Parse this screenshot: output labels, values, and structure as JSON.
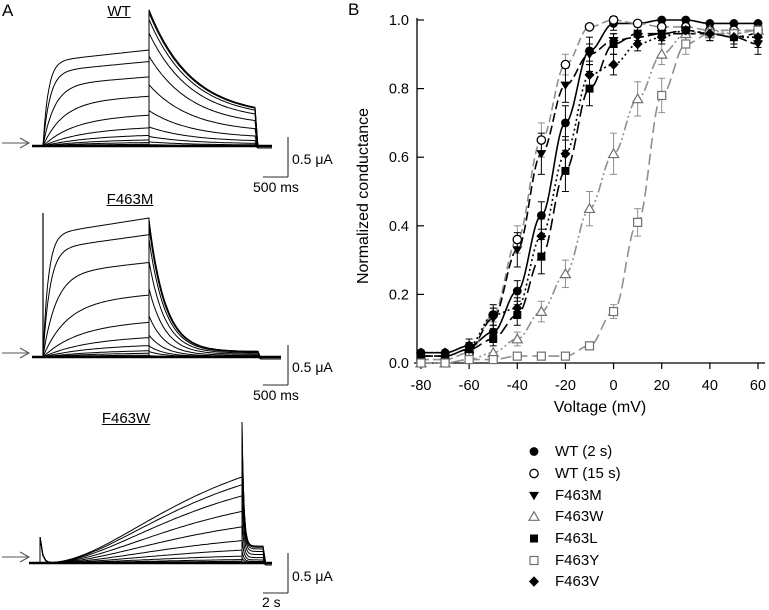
{
  "figure": {
    "panelA": {
      "label": "A",
      "plots": [
        {
          "title": "WT",
          "type": "wt",
          "scale_v": "0.5 μA",
          "scale_t": "500 ms",
          "trace_activation_levels": [
            0,
            0.005,
            0.01,
            0.02,
            0.04,
            0.07,
            0.12,
            0.2,
            0.33,
            0.52,
            0.72,
            0.88,
            1.0
          ],
          "trace_tail_levels": [
            0,
            0.01,
            0.03,
            0.07,
            0.14,
            0.26,
            0.45,
            0.66,
            0.83,
            0.93,
            0.98,
            1.0,
            1.0
          ]
        },
        {
          "title": "F463M",
          "type": "m",
          "scale_v": "0.5 μA",
          "scale_t": "500 ms",
          "trace_activation_levels": [
            0,
            0.005,
            0.015,
            0.03,
            0.05,
            0.09,
            0.15,
            0.26,
            0.45,
            0.68,
            0.88,
            1.0
          ],
          "trace_tail_levels": [
            0,
            0.01,
            0.04,
            0.08,
            0.16,
            0.3,
            0.5,
            0.7,
            0.86,
            0.95,
            1.0,
            1.0
          ]
        },
        {
          "title": "F463W",
          "type": "w",
          "scale_v": "0.5 μA",
          "scale_t": "2 s",
          "trace_activation_levels": [
            0,
            0.01,
            0.02,
            0.04,
            0.08,
            0.15,
            0.26,
            0.42,
            0.6,
            0.78,
            0.91,
            1.0
          ],
          "trace_tail_levels": [
            0,
            0.01,
            0.04,
            0.09,
            0.18,
            0.32,
            0.5,
            0.68,
            0.83,
            0.93,
            0.98,
            1.0
          ]
        }
      ]
    },
    "panelB": {
      "label": "B"
    }
  },
  "chart_data": {
    "type": "scatter",
    "title": "",
    "xlabel": "Voltage (mV)",
    "ylabel": "Normalized conductance",
    "x": [
      -80,
      -70,
      -60,
      -50,
      -40,
      -30,
      -20,
      -10,
      0,
      10,
      20,
      30,
      40,
      50,
      60
    ],
    "xlim": [
      -80,
      60
    ],
    "ylim": [
      0.0,
      1.0
    ],
    "xticks": [
      -80,
      -60,
      -40,
      -20,
      0,
      20,
      40,
      60
    ],
    "yticks": [
      0.0,
      0.2,
      0.4,
      0.6,
      0.8,
      1.0
    ],
    "grid": false,
    "legend_position": "below-right",
    "colors": {
      "black": "#000000",
      "gray": "#8f8f8f"
    },
    "series": [
      {
        "name": "WT (2 s)",
        "marker": "circle",
        "color": "#000000",
        "marker_color": "#000000",
        "dash": "",
        "values": [
          0.03,
          0.03,
          0.05,
          0.09,
          0.21,
          0.43,
          0.7,
          0.91,
          0.99,
          0.99,
          1.0,
          1.0,
          0.99,
          0.99,
          0.99
        ],
        "err": [
          0.01,
          0.01,
          0.01,
          0.02,
          0.03,
          0.04,
          0.05,
          0.04,
          0.02,
          0.01,
          0.01,
          0.01,
          0.01,
          0.01,
          0.01
        ]
      },
      {
        "name": "WT (15 s)",
        "marker": "circle-open",
        "color": "#8f8f8f",
        "marker_color": "#000000",
        "dash": "8,4",
        "values": [
          0.01,
          0.01,
          0.03,
          0.14,
          0.36,
          0.65,
          0.87,
          0.98,
          1.0,
          0.99,
          0.98,
          0.98,
          0.97,
          0.97,
          0.97
        ],
        "err": [
          0.005,
          0.005,
          0.01,
          0.02,
          0.04,
          0.05,
          0.03,
          0.01,
          0.005,
          0.01,
          0.01,
          0.01,
          0.01,
          0.01,
          0.02
        ]
      },
      {
        "name": "F463M",
        "marker": "triangle-down",
        "color": "#000000",
        "marker_color": "#000000",
        "dash": "9,4",
        "values": [
          0.02,
          0.02,
          0.04,
          0.13,
          0.33,
          0.61,
          0.81,
          0.9,
          0.94,
          0.95,
          0.96,
          0.96,
          0.96,
          0.95,
          0.93
        ],
        "err": [
          0.01,
          0.01,
          0.01,
          0.03,
          0.05,
          0.06,
          0.05,
          0.03,
          0.02,
          0.02,
          0.02,
          0.02,
          0.02,
          0.02,
          0.03
        ]
      },
      {
        "name": "F463W",
        "marker": "triangle-up-open",
        "color": "#8f8f8f",
        "marker_color": "#6f6f6f",
        "dash": "10,3,2,3,2,3",
        "values": [
          0.0,
          0.0,
          0.01,
          0.03,
          0.07,
          0.15,
          0.26,
          0.45,
          0.61,
          0.77,
          0.9,
          0.96,
          0.97,
          0.96,
          0.97
        ],
        "err": [
          0.005,
          0.005,
          0.01,
          0.01,
          0.02,
          0.03,
          0.04,
          0.05,
          0.06,
          0.05,
          0.03,
          0.02,
          0.02,
          0.02,
          0.02
        ]
      },
      {
        "name": "F463L",
        "marker": "square",
        "color": "#000000",
        "marker_color": "#000000",
        "dash": "12,5",
        "values": [
          0.02,
          0.02,
          0.04,
          0.07,
          0.14,
          0.31,
          0.56,
          0.8,
          0.93,
          0.96,
          0.96,
          0.97,
          0.96,
          0.95,
          0.96
        ],
        "err": [
          0.01,
          0.01,
          0.02,
          0.02,
          0.03,
          0.05,
          0.06,
          0.05,
          0.03,
          0.02,
          0.02,
          0.02,
          0.02,
          0.02,
          0.02
        ]
      },
      {
        "name": "F463Y",
        "marker": "square-open",
        "color": "#8f8f8f",
        "marker_color": "#6f6f6f",
        "dash": "11,5",
        "values": [
          0.0,
          0.0,
          0.01,
          0.01,
          0.02,
          0.02,
          0.02,
          0.05,
          0.15,
          0.41,
          0.78,
          0.93,
          0.96,
          0.96,
          0.97
        ],
        "err": [
          0.005,
          0.005,
          0.005,
          0.005,
          0.005,
          0.005,
          0.005,
          0.01,
          0.02,
          0.04,
          0.05,
          0.03,
          0.02,
          0.02,
          0.02
        ]
      },
      {
        "name": "F463V",
        "marker": "diamond",
        "color": "#000000",
        "marker_color": "#000000",
        "dash": "2,3",
        "values": [
          0.03,
          0.03,
          0.05,
          0.14,
          0.16,
          0.37,
          0.61,
          0.84,
          0.87,
          0.93,
          0.95,
          0.97,
          0.96,
          0.95,
          0.95
        ],
        "err": [
          0.01,
          0.01,
          0.02,
          0.03,
          0.03,
          0.05,
          0.05,
          0.04,
          0.03,
          0.02,
          0.02,
          0.02,
          0.02,
          0.03,
          0.03
        ]
      }
    ]
  }
}
